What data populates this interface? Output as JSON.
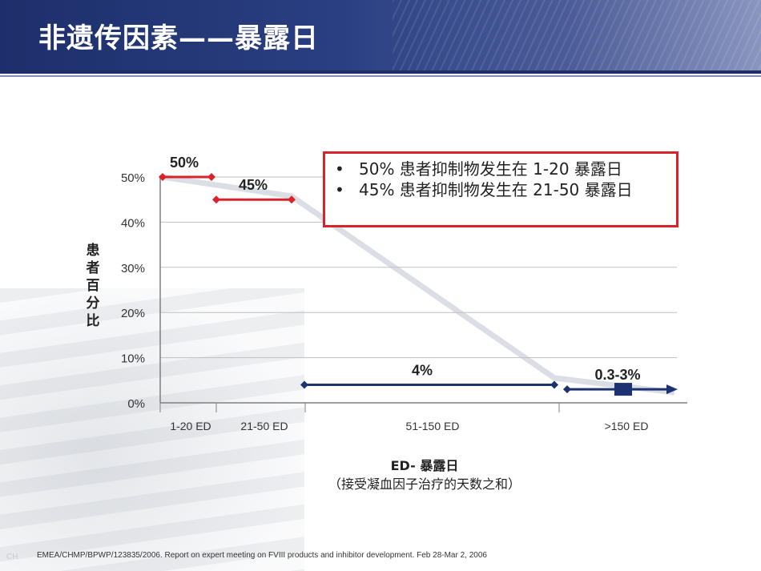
{
  "header": {
    "title": "非遗传因素——暴露日"
  },
  "note_box": {
    "bullet": "•",
    "items": [
      "50% 患者抑制物发生在  1-20  暴露日",
      "45% 患者抑制物发生在  21-50  暴露日"
    ]
  },
  "chart_data": {
    "type": "line",
    "ylabel": "患者百分比",
    "xlabel": "ED- 暴露日",
    "xlabel_sub": "（接受凝血因子治疗的天数之和）",
    "ylim": [
      0,
      50
    ],
    "y_ticks": [
      "0%",
      "10%",
      "20%",
      "30%",
      "40%",
      "50%"
    ],
    "grid": true,
    "categories": [
      "1-20 ED",
      "21-50 ED",
      "51-150  ED",
      ">150 ED"
    ],
    "series": [
      {
        "category": "1-20 ED",
        "value": 50,
        "label": "50%",
        "color": "#d9232a"
      },
      {
        "category": "21-50 ED",
        "value": 45,
        "label": "45%",
        "color": "#d9232a"
      },
      {
        "category": "51-150  ED",
        "value": 4,
        "label": "4%",
        "color": "#1d3270"
      },
      {
        "category": ">150 ED",
        "value": 3,
        "value_range": [
          0.3,
          3
        ],
        "label": "0.3-3%",
        "color": "#1d3270"
      }
    ]
  },
  "footer": {
    "reference": "EMEA/CHMP/BPWP/123835/2006. Report on expert meeting on FVIII products and inhibitor development. Feb 28-Mar 2, 2006"
  }
}
